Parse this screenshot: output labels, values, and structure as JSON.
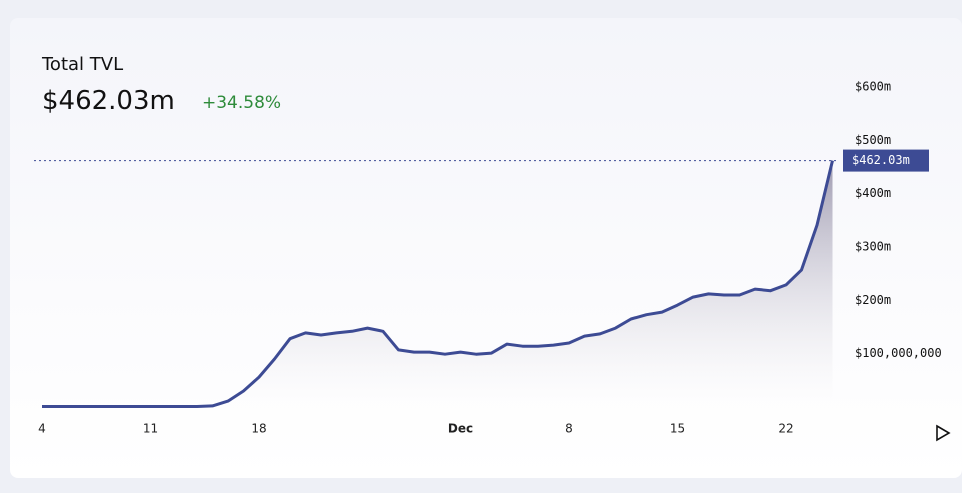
{
  "chart_data": {
    "type": "area",
    "title": "Total TVL",
    "subtitle": "$462.03m",
    "change": "+34.58%",
    "categories": [
      "4",
      null,
      null,
      null,
      null,
      null,
      null,
      "11",
      null,
      null,
      null,
      null,
      null,
      null,
      "18",
      null,
      null,
      null,
      null,
      null,
      null,
      null,
      null,
      null,
      null,
      null,
      null,
      "Dec",
      null,
      null,
      null,
      null,
      null,
      null,
      "8",
      null,
      null,
      null,
      null,
      null,
      null,
      "15",
      null,
      null,
      null,
      null,
      null,
      null,
      "22",
      null,
      null,
      null
    ],
    "series": [
      {
        "name": "TVL",
        "color": "#3d4b94",
        "values": [
          1,
          1,
          1,
          1,
          1,
          1,
          1,
          1,
          1,
          1,
          1,
          2,
          11,
          30,
          56,
          90,
          128,
          139,
          135,
          139,
          142,
          148,
          142,
          107,
          103,
          103,
          99,
          103,
          99,
          101,
          118,
          114,
          114,
          116,
          120,
          133,
          137,
          148,
          165,
          173,
          178,
          191,
          206,
          212,
          210,
          210,
          221,
          218,
          229,
          257,
          341,
          462.03
        ],
        "value_labels": {
          "51": "$462.03m"
        }
      }
    ],
    "ylim": [
      0,
      600
    ],
    "yticks": [
      {
        "value": 100,
        "label": "$100,000,000"
      },
      {
        "value": 200,
        "label": "$200m"
      },
      {
        "value": 300,
        "label": "$300m"
      },
      {
        "value": 400,
        "label": "$400m"
      },
      {
        "value": 500,
        "label": "$500m"
      },
      {
        "value": 600,
        "label": "$600m"
      }
    ],
    "grid": false
  }
}
